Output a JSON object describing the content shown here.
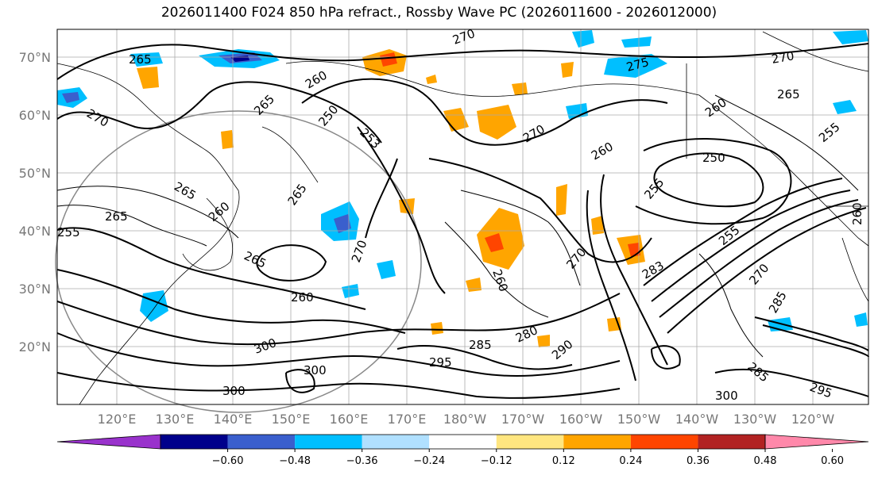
{
  "title": "2026011400 F024 850 hPa refract., Rossby Wave PC (2026011600 - 2026012000)",
  "lat_labels": [
    "70°N",
    "60°N",
    "50°N",
    "40°N",
    "30°N",
    "20°N"
  ],
  "lon_labels": [
    "120°E",
    "130°E",
    "140°E",
    "150°E",
    "160°E",
    "170°E",
    "180°W",
    "170°W",
    "160°W",
    "150°W",
    "140°W",
    "130°W",
    "120°W"
  ],
  "colorbar": {
    "ticks": [
      "−0.60",
      "−0.48",
      "−0.36",
      "−0.24",
      "−0.12",
      "0.12",
      "0.24",
      "0.36",
      "0.48",
      "0.60"
    ],
    "colors": [
      "#9932cc",
      "#00008b",
      "#3a5fcd",
      "#00bfff",
      "#b0e0ff",
      "#ffffff",
      "#ffe680",
      "#ffa500",
      "#ff4500",
      "#b22222",
      "#ff88aa"
    ]
  },
  "contour_labels": [
    {
      "text": "265"
    },
    {
      "text": "270"
    },
    {
      "text": "260"
    },
    {
      "text": "265"
    },
    {
      "text": "250"
    },
    {
      "text": "253"
    },
    {
      "text": "270"
    },
    {
      "text": "270"
    },
    {
      "text": "275"
    },
    {
      "text": "270"
    },
    {
      "text": "265"
    },
    {
      "text": "260"
    },
    {
      "text": "255"
    },
    {
      "text": "260"
    },
    {
      "text": "250"
    },
    {
      "text": "255"
    },
    {
      "text": "265"
    },
    {
      "text": "265"
    },
    {
      "text": "260"
    },
    {
      "text": "255"
    },
    {
      "text": "265"
    },
    {
      "text": "265"
    },
    {
      "text": "270"
    },
    {
      "text": "260"
    },
    {
      "text": "270"
    },
    {
      "text": "283"
    },
    {
      "text": "255"
    },
    {
      "text": "270"
    },
    {
      "text": "285"
    },
    {
      "text": "280"
    },
    {
      "text": "290"
    },
    {
      "text": "300"
    },
    {
      "text": "300"
    },
    {
      "text": "300"
    },
    {
      "text": "295"
    },
    {
      "text": "285"
    },
    {
      "text": "300"
    },
    {
      "text": "295"
    },
    {
      "text": "285"
    },
    {
      "text": "260"
    },
    {
      "text": "260"
    }
  ]
}
